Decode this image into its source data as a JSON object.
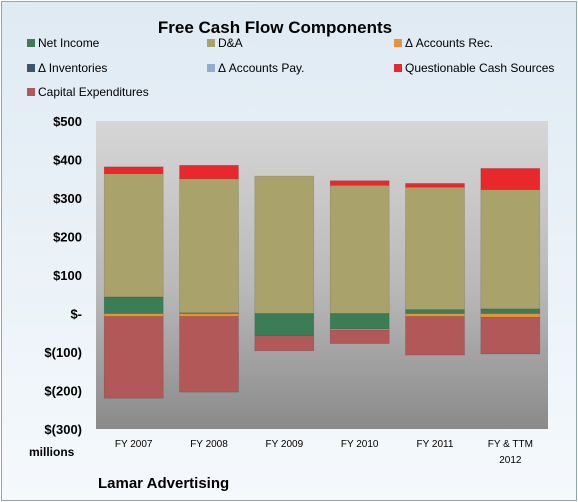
{
  "chart_data": {
    "type": "bar",
    "stacked": true,
    "title": "Free Cash Flow Components",
    "categories": [
      [
        "FY 2007"
      ],
      [
        "FY 2008"
      ],
      [
        "FY 2009"
      ],
      [
        "FY 2010"
      ],
      [
        "FY 2011"
      ],
      [
        "FY & TTM",
        "2012"
      ]
    ],
    "yticks": [
      "$500",
      "$400",
      "$300",
      "$200",
      "$100",
      "$-",
      "$(100)",
      "$(200)",
      "$(300)"
    ],
    "ylim": [
      -300,
      500
    ],
    "ylabel": "",
    "unit_label": "millions",
    "company": "Lamar Advertising",
    "legend_position": "top",
    "grid": false,
    "series": [
      {
        "name": "Net Income",
        "color": "#3b7d56",
        "values": [
          43,
          2,
          -57,
          -40,
          10,
          12
        ]
      },
      {
        "name": "D&A",
        "color": "#a9a26b",
        "values": [
          320,
          348,
          357,
          333,
          318,
          310
        ]
      },
      {
        "name": "Δ Accounts Rec.",
        "color": "#e7923a",
        "values": [
          -8,
          -8,
          0,
          -3,
          -8,
          -10
        ]
      },
      {
        "name": "Δ Inventories",
        "color": "#3c556d",
        "values": [
          0,
          0,
          0,
          0,
          0,
          0
        ]
      },
      {
        "name": "Δ Accounts Pay.",
        "color": "#90aed0",
        "values": [
          0,
          0,
          0,
          0,
          0,
          0
        ]
      },
      {
        "name": "Questionable Cash Sources",
        "color": "#e8282a",
        "values": [
          18,
          35,
          0,
          12,
          10,
          55
        ]
      },
      {
        "name": "Capital Expenditures",
        "color": "#b25858",
        "values": [
          -212,
          -196,
          -40,
          -35,
          -100,
          -95
        ]
      }
    ]
  },
  "colors": {
    "plot_top": "#d6d6d6",
    "plot_bottom": "#8a8a8a",
    "frame_bg": "#e6eef5"
  }
}
